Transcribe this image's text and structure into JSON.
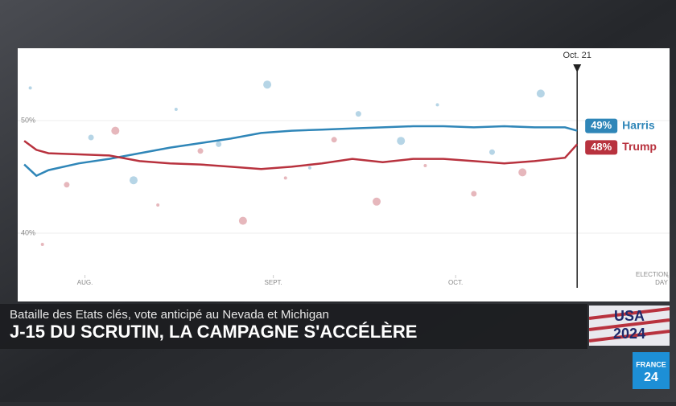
{
  "chart_data": {
    "type": "line",
    "x": [
      204,
      206,
      208,
      213,
      218,
      223,
      228,
      233,
      238,
      243,
      248,
      253,
      258,
      263,
      268,
      273,
      278,
      283,
      288,
      293,
      295
    ],
    "xlim": [
      203,
      311
    ],
    "xticks": [
      {
        "value": 214,
        "label": "AUG."
      },
      {
        "value": 245,
        "label": "SEPT."
      },
      {
        "value": 275,
        "label": "OCT."
      },
      {
        "value": 310,
        "label": "ELECTION DAY"
      }
    ],
    "marker": {
      "value": 295,
      "label": "Oct. 21"
    },
    "ylim": [
      34,
      56
    ],
    "yticks": [
      {
        "value": 40,
        "label": "40%"
      },
      {
        "value": 50,
        "label": "50%"
      }
    ],
    "series": [
      {
        "name": "Harris",
        "color": "#2f86b8",
        "values": [
          46.1,
          45.1,
          45.6,
          46.2,
          46.6,
          47.1,
          47.6,
          48.0,
          48.4,
          48.9,
          49.1,
          49.2,
          49.3,
          49.4,
          49.5,
          49.5,
          49.4,
          49.5,
          49.4,
          49.4,
          49.1
        ],
        "value_labels": [
          null,
          null,
          null,
          null,
          null,
          null,
          null,
          null,
          null,
          null,
          null,
          null,
          null,
          null,
          null,
          null,
          null,
          null,
          null,
          null,
          "49%"
        ],
        "polls": {
          "x": [
            205,
            215,
            222,
            229,
            236,
            244,
            251,
            259,
            266,
            272,
            281,
            289
          ],
          "y": [
            52.9,
            48.5,
            44.7,
            51.0,
            47.9,
            53.2,
            45.8,
            50.6,
            48.2,
            51.4,
            47.2,
            52.4
          ]
        }
      },
      {
        "name": "Trump",
        "color": "#b8323e",
        "values": [
          48.2,
          47.4,
          47.1,
          47.0,
          46.9,
          46.4,
          46.2,
          46.1,
          45.9,
          45.7,
          45.9,
          46.2,
          46.6,
          46.3,
          46.6,
          46.6,
          46.4,
          46.2,
          46.4,
          46.7,
          47.9
        ],
        "value_labels": [
          null,
          null,
          null,
          null,
          null,
          null,
          null,
          null,
          null,
          null,
          null,
          null,
          null,
          null,
          null,
          null,
          null,
          null,
          null,
          null,
          "48%"
        ],
        "polls": {
          "x": [
            207,
            211,
            219,
            226,
            233,
            240,
            247,
            255,
            262,
            270,
            278,
            286
          ],
          "y": [
            39.0,
            44.3,
            49.1,
            42.5,
            47.3,
            41.1,
            44.9,
            48.3,
            42.8,
            46.0,
            43.5,
            45.4
          ]
        }
      }
    ]
  },
  "banner": {
    "subtitle": "Bataille des Etats clés, vote anticipé au Nevada et Michigan",
    "headline": "J-15 DU SCRUTIN, LA CAMPAGNE S'ACCÉLÈRE",
    "logo": [
      "USA",
      "2024"
    ],
    "channel": [
      "FRANCE",
      "24"
    ]
  }
}
